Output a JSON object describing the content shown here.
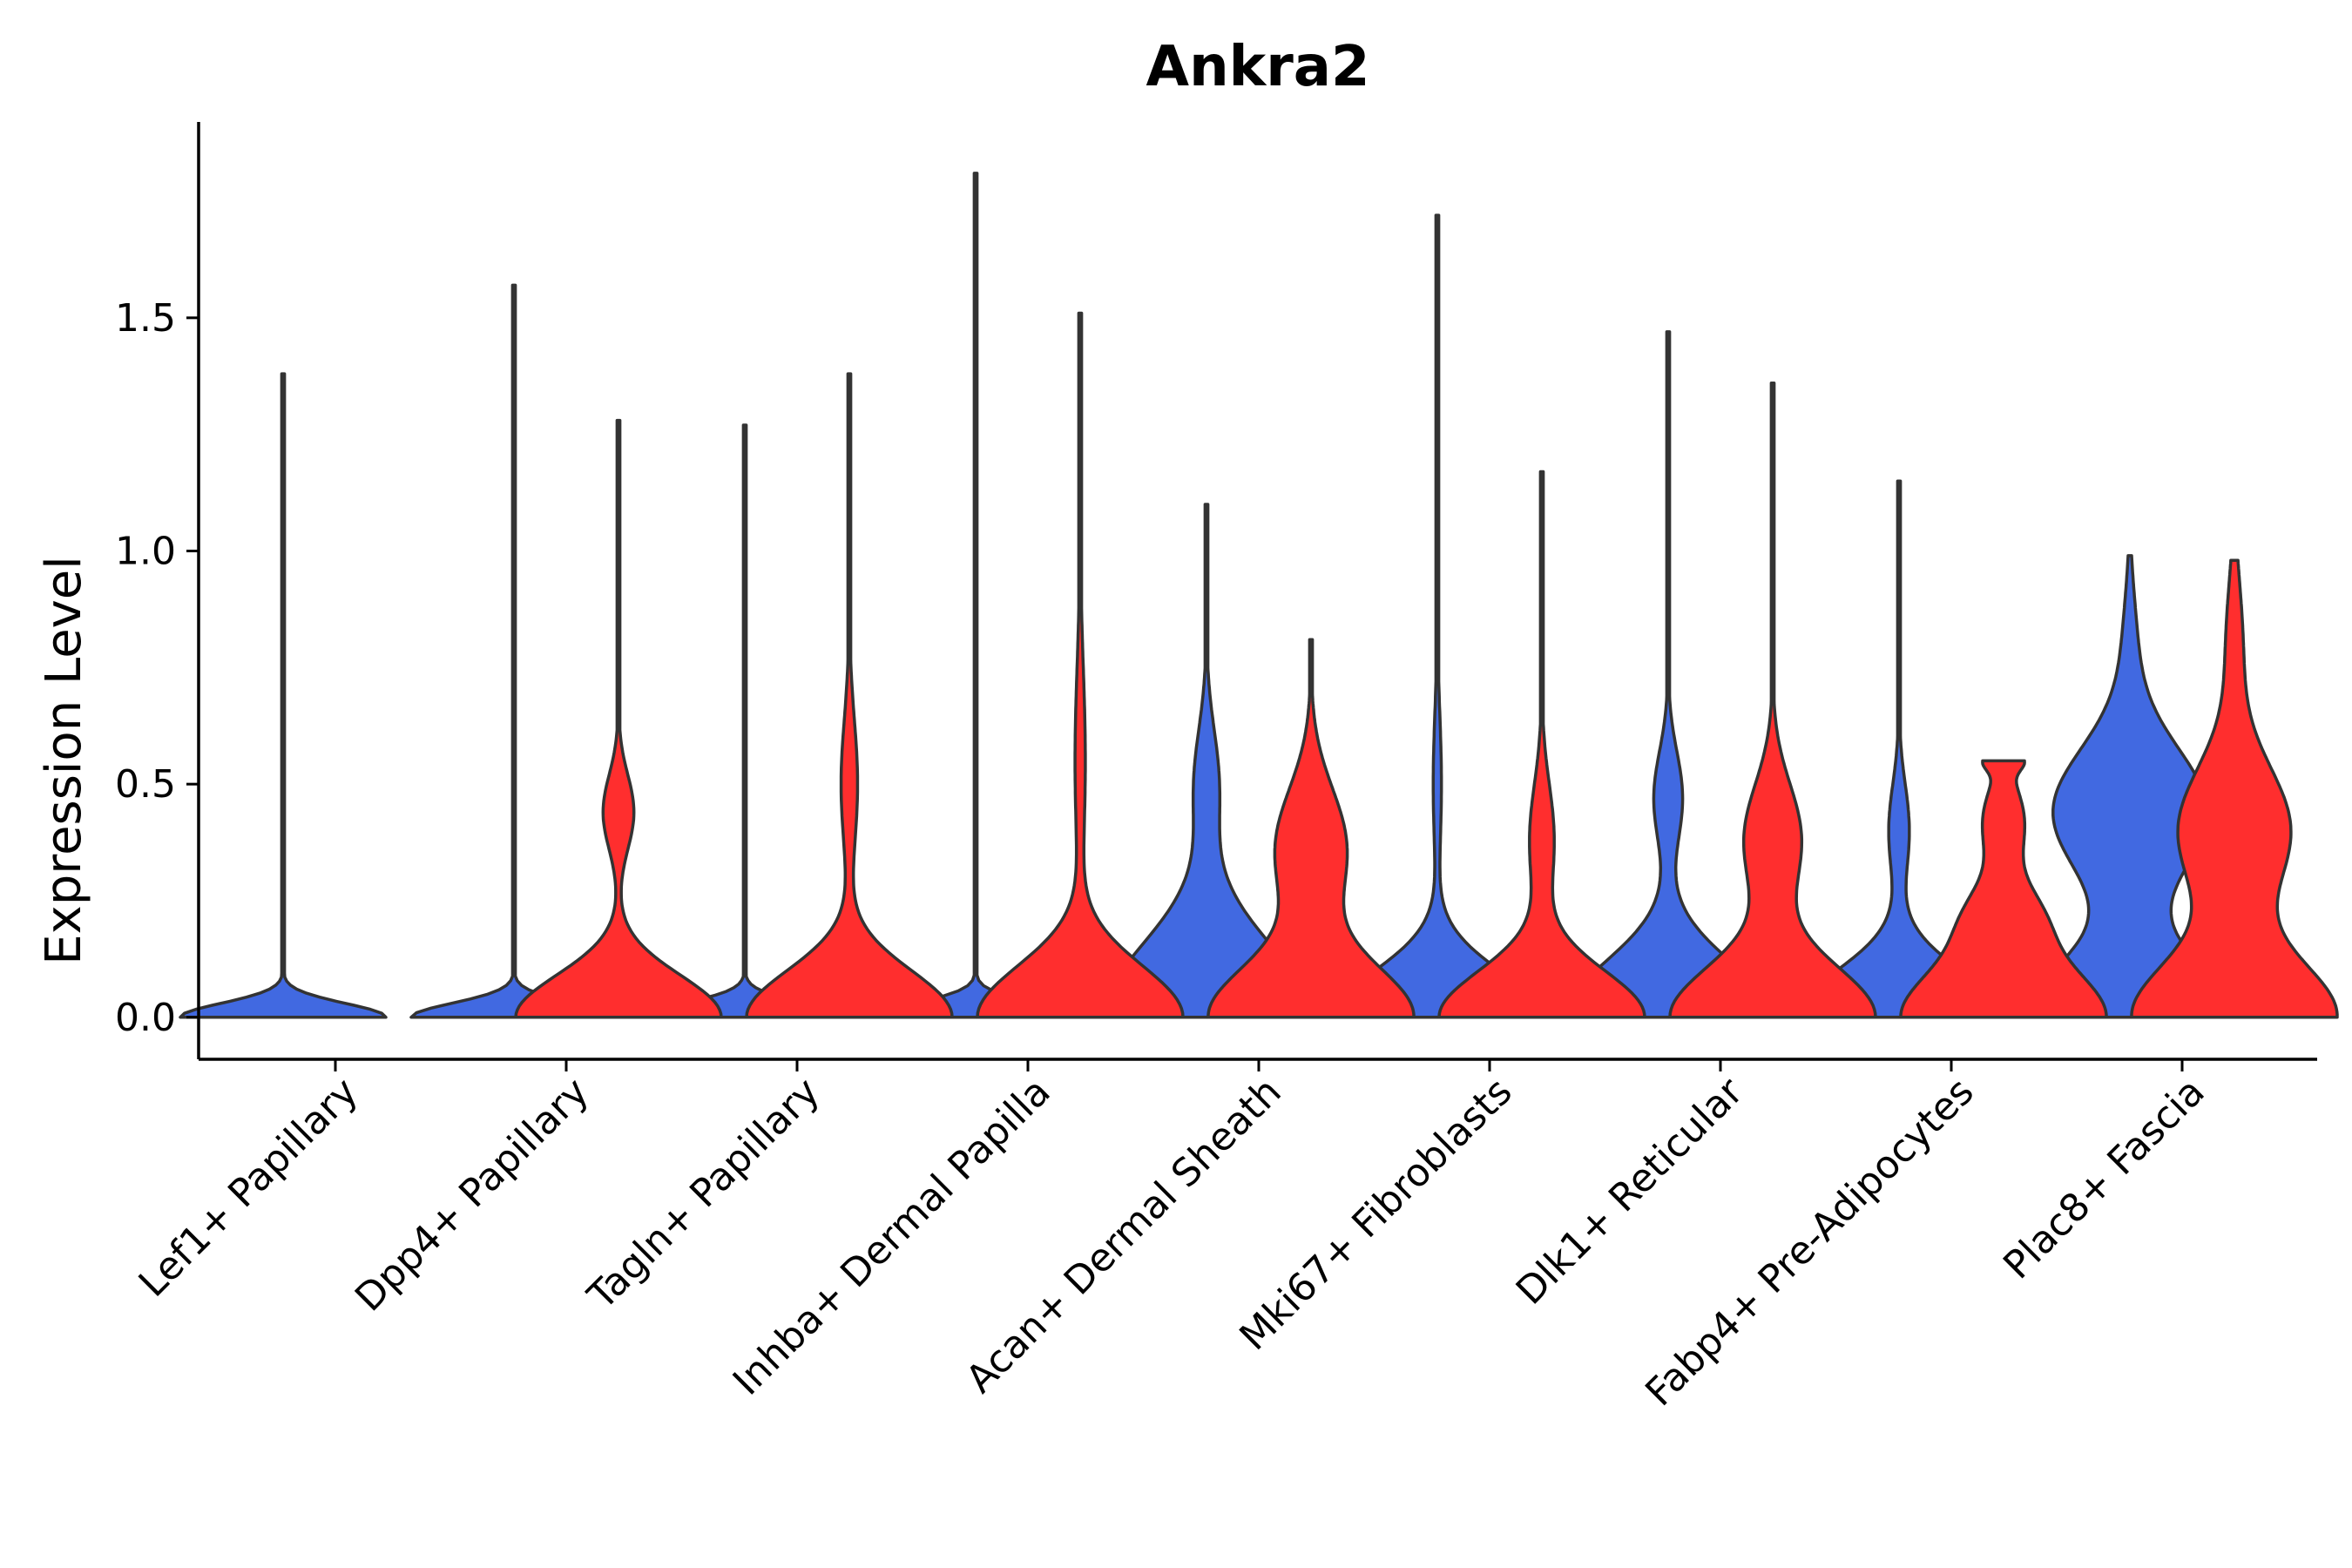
{
  "chart_data": {
    "type": "violin",
    "title": "Ankra2",
    "xlabel": "",
    "ylabel": "Expression Level",
    "ylim": [
      -0.09,
      1.92
    ],
    "yticks": [
      0.0,
      0.5,
      1.0,
      1.5
    ],
    "ytick_labels": [
      "0.0",
      "0.5",
      "1.0",
      "1.5"
    ],
    "colors": {
      "blue": "#4169E1",
      "red": "#FF2E2E",
      "outline": "#333333"
    },
    "categories": [
      "Lef1+ Papillary",
      "Dpp4+ Papillary",
      "Tagln+ Papillary",
      "Inhba+ Dermal Papilla",
      "Acan+ Dermal Sheath",
      "Mki67+ Fibroblasts",
      "Dlk1+ Reticular",
      "Fabp4+ Pre-Adipocytes",
      "Plac8+ Fascia"
    ],
    "series": [
      {
        "name": "blue",
        "color": "#4169E1",
        "max": [
          1.38,
          1.57,
          1.27,
          1.81,
          1.1,
          1.72,
          1.47,
          1.15,
          0.99
        ],
        "modes": [
          [
            [
              0.0,
              1.0,
              0.03
            ]
          ],
          [
            [
              0.0,
              1.0,
              0.03
            ]
          ],
          [
            [
              0.0,
              1.0,
              0.03
            ]
          ],
          [
            [
              0.0,
              1.0,
              0.03
            ]
          ],
          [
            [
              0.0,
              1.0,
              0.16
            ],
            [
              0.5,
              0.12,
              0.12
            ]
          ],
          [
            [
              0.0,
              1.0,
              0.1
            ],
            [
              0.5,
              0.04,
              0.15
            ]
          ],
          [
            [
              0.0,
              1.0,
              0.12
            ],
            [
              0.47,
              0.14,
              0.1
            ]
          ],
          [
            [
              0.0,
              1.0,
              0.1
            ],
            [
              0.4,
              0.1,
              0.1
            ]
          ],
          [
            [
              0.0,
              1.0,
              0.12
            ],
            [
              0.44,
              0.75,
              0.14
            ],
            [
              0.8,
              0.06,
              0.12
            ]
          ]
        ]
      },
      {
        "name": "red",
        "color": "#FF2E2E",
        "max": [
          null,
          1.28,
          1.38,
          1.51,
          0.81,
          1.17,
          1.36,
          0.55,
          0.98
        ],
        "modes": [
          null,
          [
            [
              0.0,
              1.0,
              0.09
            ],
            [
              0.44,
              0.15,
              0.08
            ]
          ],
          [
            [
              0.0,
              1.0,
              0.1
            ],
            [
              0.5,
              0.08,
              0.14
            ]
          ],
          [
            [
              0.0,
              1.0,
              0.11
            ],
            [
              0.55,
              0.05,
              0.2
            ]
          ],
          [
            [
              0.0,
              1.0,
              0.11
            ],
            [
              0.36,
              0.35,
              0.13
            ]
          ],
          [
            [
              0.0,
              1.0,
              0.1
            ],
            [
              0.38,
              0.12,
              0.12
            ]
          ],
          [
            [
              0.0,
              1.0,
              0.11
            ],
            [
              0.38,
              0.28,
              0.12
            ]
          ],
          [
            [
              0.0,
              1.0,
              0.11
            ],
            [
              0.22,
              0.28,
              0.07
            ],
            [
              0.42,
              0.2,
              0.08
            ],
            [
              0.55,
              0.15,
              0.02
            ]
          ],
          [
            [
              0.0,
              1.0,
              0.12
            ],
            [
              0.4,
              0.55,
              0.14
            ],
            [
              0.8,
              0.08,
              0.14
            ]
          ]
        ]
      }
    ]
  }
}
